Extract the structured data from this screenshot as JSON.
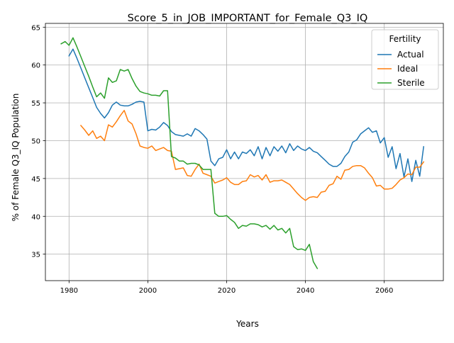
{
  "chart_data": {
    "type": "line",
    "title": "Score_5_in_JOB_IMPORTANT_for_Female_Q3_IQ",
    "xlabel": "Years",
    "ylabel": "% of Female Q3_IQ Population",
    "xlim": [
      1974,
      2075
    ],
    "ylim": [
      31.5,
      65.5
    ],
    "xticks": [
      1980,
      2000,
      2020,
      2040,
      2060
    ],
    "yticks": [
      35,
      40,
      45,
      50,
      55,
      60,
      65
    ],
    "grid": true,
    "legend": {
      "title": "Fertility",
      "location": "upper right"
    },
    "series": [
      {
        "name": "Actual",
        "color": "#1f77b4",
        "x": [
          1980,
          1981,
          1982,
          1983,
          1984,
          1985,
          1986,
          1987,
          1988,
          1989,
          1990,
          1991,
          1992,
          1993,
          1994,
          1995,
          1996,
          1997,
          1998,
          1999,
          2000,
          2001,
          2002,
          2003,
          2004,
          2005,
          2006,
          2007,
          2008,
          2009,
          2010,
          2011,
          2012,
          2013,
          2014,
          2015,
          2016,
          2017,
          2018,
          2019,
          2020,
          2021,
          2022,
          2023,
          2024,
          2025,
          2026,
          2027,
          2028,
          2029,
          2030,
          2031,
          2032,
          2033,
          2034,
          2035,
          2036,
          2037,
          2038,
          2039,
          2040,
          2041,
          2042,
          2043,
          2044,
          2045,
          2046,
          2047,
          2048,
          2049,
          2050,
          2051,
          2052,
          2053,
          2054,
          2055,
          2056,
          2057,
          2058,
          2059,
          2060,
          2061,
          2062,
          2063,
          2064,
          2065,
          2066,
          2067,
          2068,
          2069,
          2070
        ],
        "y": [
          61.2,
          62.1,
          60.9,
          59.6,
          58.3,
          57.0,
          55.7,
          54.4,
          53.6,
          53.0,
          53.7,
          54.7,
          55.1,
          54.7,
          54.6,
          54.6,
          54.8,
          55.1,
          55.2,
          55.1,
          51.3,
          51.5,
          51.4,
          51.8,
          52.4,
          52.0,
          51.2,
          50.8,
          50.7,
          50.6,
          50.9,
          50.6,
          51.6,
          51.3,
          50.8,
          50.2,
          47.3,
          46.7,
          47.6,
          47.8,
          48.8,
          47.6,
          48.5,
          47.6,
          48.5,
          48.3,
          48.8,
          48.0,
          49.2,
          47.6,
          49.1,
          48.0,
          49.2,
          48.6,
          49.3,
          48.4,
          49.6,
          48.7,
          49.3,
          48.9,
          48.7,
          49.1,
          48.6,
          48.4,
          47.9,
          47.4,
          46.9,
          46.6,
          46.6,
          47.0,
          47.9,
          48.5,
          49.8,
          50.1,
          50.9,
          51.3,
          51.7,
          51.1,
          51.3,
          49.7,
          50.4,
          47.8,
          49.2,
          46.3,
          48.3,
          45.2,
          47.6,
          44.6,
          47.4,
          45.3,
          49.2
        ]
      },
      {
        "name": "Ideal",
        "color": "#ff7f0e",
        "x": [
          1983,
          1984,
          1985,
          1986,
          1987,
          1988,
          1989,
          1990,
          1991,
          1992,
          1993,
          1994,
          1995,
          1996,
          1997,
          1998,
          1999,
          2000,
          2001,
          2002,
          2003,
          2004,
          2005,
          2006,
          2007,
          2008,
          2009,
          2010,
          2011,
          2012,
          2013,
          2014,
          2015,
          2016,
          2017,
          2018,
          2019,
          2020,
          2021,
          2022,
          2023,
          2024,
          2025,
          2026,
          2027,
          2028,
          2029,
          2030,
          2031,
          2032,
          2033,
          2034,
          2035,
          2036,
          2037,
          2038,
          2039,
          2040,
          2041,
          2042,
          2043,
          2044,
          2045,
          2046,
          2047,
          2048,
          2049,
          2050,
          2051,
          2052,
          2053,
          2054,
          2055,
          2056,
          2057,
          2058,
          2059,
          2060,
          2061,
          2062,
          2063,
          2064,
          2065,
          2066,
          2067,
          2068,
          2069,
          2070
        ],
        "y": [
          52.0,
          51.4,
          50.7,
          51.3,
          50.3,
          50.6,
          50.0,
          52.1,
          51.8,
          52.5,
          53.3,
          54.0,
          52.6,
          52.2,
          50.9,
          49.3,
          49.1,
          49.0,
          49.3,
          48.7,
          48.9,
          49.1,
          48.7,
          48.6,
          46.2,
          46.3,
          46.4,
          45.4,
          45.3,
          46.2,
          46.9,
          45.7,
          45.5,
          45.3,
          44.4,
          44.6,
          44.8,
          45.1,
          44.5,
          44.2,
          44.2,
          44.6,
          44.7,
          45.5,
          45.2,
          45.4,
          44.8,
          45.5,
          44.5,
          44.7,
          44.7,
          44.8,
          44.5,
          44.2,
          43.6,
          43.0,
          42.5,
          42.1,
          42.5,
          42.6,
          42.5,
          43.2,
          43.3,
          44.1,
          44.3,
          45.3,
          44.9,
          46.1,
          46.2,
          46.6,
          46.7,
          46.7,
          46.4,
          45.7,
          45.1,
          44.0,
          44.1,
          43.6,
          43.6,
          43.7,
          44.2,
          44.8,
          45.1,
          45.6,
          45.5,
          46.5,
          46.5,
          47.2
        ]
      },
      {
        "name": "Sterile",
        "color": "#2ca02c",
        "x": [
          1978,
          1979,
          1980,
          1981,
          1982,
          1983,
          1984,
          1985,
          1986,
          1987,
          1988,
          1989,
          1990,
          1991,
          1992,
          1993,
          1994,
          1995,
          1996,
          1997,
          1998,
          1999,
          2000,
          2001,
          2002,
          2003,
          2004,
          2005,
          2006,
          2007,
          2008,
          2009,
          2010,
          2011,
          2012,
          2013,
          2014,
          2015,
          2016,
          2017,
          2018,
          2019,
          2020,
          2021,
          2022,
          2023,
          2024,
          2025,
          2026,
          2027,
          2028,
          2029,
          2030,
          2031,
          2032,
          2033,
          2034,
          2035,
          2036,
          2037,
          2038,
          2039,
          2040,
          2041,
          2042,
          2043
        ],
        "y": [
          62.8,
          63.1,
          62.6,
          63.6,
          62.4,
          61.1,
          59.8,
          58.5,
          57.1,
          55.8,
          56.3,
          55.6,
          58.3,
          57.7,
          57.9,
          59.4,
          59.2,
          59.4,
          58.2,
          57.2,
          56.5,
          56.3,
          56.2,
          56.0,
          56.0,
          55.9,
          56.6,
          56.6,
          47.9,
          47.7,
          47.3,
          47.3,
          46.9,
          47.0,
          47.0,
          46.8,
          46.2,
          46.2,
          46.2,
          40.4,
          40.0,
          40.0,
          40.1,
          39.6,
          39.2,
          38.4,
          38.8,
          38.7,
          39.0,
          39.0,
          38.9,
          38.6,
          38.8,
          38.3,
          38.8,
          38.2,
          38.4,
          37.8,
          38.4,
          36.0,
          35.6,
          35.7,
          35.5,
          36.3,
          34.0,
          33.1
        ]
      }
    ]
  }
}
